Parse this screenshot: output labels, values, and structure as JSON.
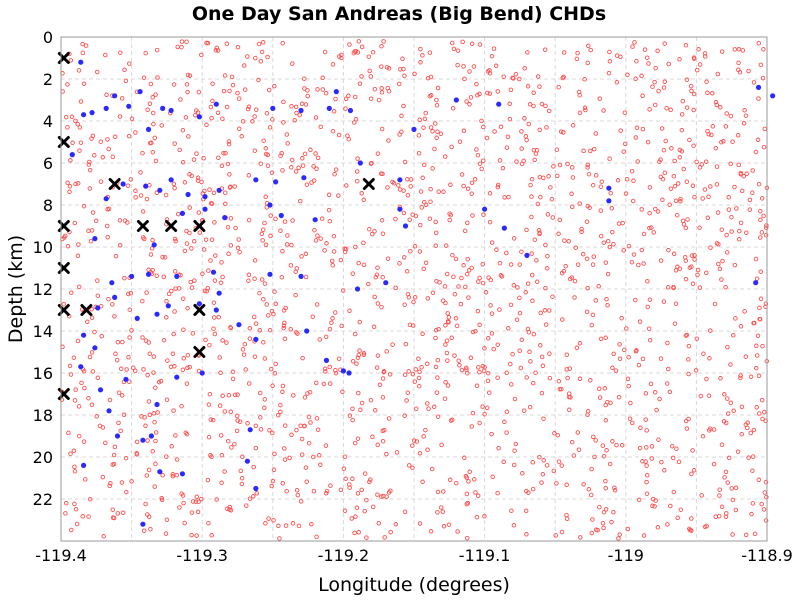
{
  "chart_data": {
    "type": "scatter",
    "title": "One Day San Andreas (Big Bend) CHDs",
    "xlabel": "Longitude (degrees)",
    "ylabel": "Depth (km)",
    "xlim": [
      -119.4,
      -118.9
    ],
    "ylim": [
      24,
      0
    ],
    "y_inverted": true,
    "grid": true,
    "x_ticks": [
      -119.4,
      -119.3,
      -119.2,
      -119.1,
      -119,
      -118.9
    ],
    "x_tick_labels": [
      "-119.4",
      "-119.3",
      "-119.2",
      "-119.1",
      "-119",
      "-118.9"
    ],
    "y_ticks": [
      0,
      2,
      4,
      6,
      8,
      10,
      12,
      14,
      16,
      18,
      20,
      22
    ],
    "y_tick_labels": [
      "0",
      "2",
      "4",
      "6",
      "8",
      "10",
      "12",
      "14",
      "16",
      "18",
      "20",
      "22"
    ],
    "colors": {
      "background_points": "#ff5050",
      "blue_points": "#2a2aff",
      "cross_markers": "#000000",
      "grid": "#d8d8d8",
      "frame": "#999999"
    },
    "series": [
      {
        "marker": "cross",
        "points": [
          [
            -119.398,
            1
          ],
          [
            -119.398,
            5
          ],
          [
            -119.398,
            9
          ],
          [
            -119.398,
            11
          ],
          [
            -119.398,
            13
          ],
          [
            -119.398,
            17
          ],
          [
            -119.362,
            7
          ],
          [
            -119.342,
            9
          ],
          [
            -119.322,
            9
          ],
          [
            -119.302,
            9
          ],
          [
            -119.302,
            13
          ],
          [
            -119.302,
            15
          ],
          [
            -119.382,
            13
          ],
          [
            -119.182,
            7
          ]
        ]
      },
      {
        "marker": "filled-circle",
        "points": [
          [
            -119.386,
            1.2
          ],
          [
            -119.384,
            3.7
          ],
          [
            -119.378,
            3.6
          ],
          [
            -119.368,
            3.4
          ],
          [
            -119.362,
            2.8
          ],
          [
            -119.352,
            3.3
          ],
          [
            -119.344,
            2.6
          ],
          [
            -119.338,
            4.4
          ],
          [
            -119.328,
            3.4
          ],
          [
            -119.322,
            3.5
          ],
          [
            -119.302,
            3.8
          ],
          [
            -119.29,
            3.2
          ],
          [
            -119.25,
            3.4
          ],
          [
            -119.23,
            3.5
          ],
          [
            -119.21,
            3.4
          ],
          [
            -119.205,
            2.6
          ],
          [
            -119.195,
            3.5
          ],
          [
            -119.15,
            4.4
          ],
          [
            -119.12,
            3.0
          ],
          [
            -119.09,
            3.2
          ],
          [
            -119.392,
            5.6
          ],
          [
            -119.188,
            6.0
          ],
          [
            -119.368,
            7.7
          ],
          [
            -119.356,
            7.0
          ],
          [
            -119.34,
            7.1
          ],
          [
            -119.33,
            7.3
          ],
          [
            -119.322,
            6.8
          ],
          [
            -119.31,
            7.5
          ],
          [
            -119.298,
            7.6
          ],
          [
            -119.288,
            7.3
          ],
          [
            -119.262,
            6.8
          ],
          [
            -119.248,
            6.9
          ],
          [
            -119.228,
            6.7
          ],
          [
            -119.16,
            6.8
          ],
          [
            -119.012,
            7.2
          ],
          [
            -119.012,
            7.8
          ],
          [
            -118.868,
            7.8
          ],
          [
            -119.376,
            9.6
          ],
          [
            -119.334,
            9.9
          ],
          [
            -119.314,
            8.4
          ],
          [
            -119.298,
            8.2
          ],
          [
            -119.284,
            8.6
          ],
          [
            -119.252,
            8.0
          ],
          [
            -119.244,
            8.5
          ],
          [
            -119.22,
            8.7
          ],
          [
            -119.16,
            8.2
          ],
          [
            -119.156,
            9.0
          ],
          [
            -119.1,
            8.2
          ],
          [
            -119.086,
            9.1
          ],
          [
            -119.07,
            10.4
          ],
          [
            -119.364,
            11.7
          ],
          [
            -119.35,
            11.4
          ],
          [
            -119.338,
            11.3
          ],
          [
            -119.318,
            11.4
          ],
          [
            -119.292,
            11.2
          ],
          [
            -119.288,
            12.2
          ],
          [
            -119.252,
            11.3
          ],
          [
            -119.23,
            11.4
          ],
          [
            -119.19,
            12.0
          ],
          [
            -119.17,
            11.7
          ],
          [
            -118.908,
            11.7
          ],
          [
            -119.374,
            12.9
          ],
          [
            -119.362,
            12.4
          ],
          [
            -119.346,
            13.4
          ],
          [
            -119.332,
            13.2
          ],
          [
            -119.324,
            12.8
          ],
          [
            -119.302,
            12.7
          ],
          [
            -119.29,
            13.0
          ],
          [
            -119.274,
            13.7
          ],
          [
            -119.262,
            14.4
          ],
          [
            -119.226,
            14.0
          ],
          [
            -119.212,
            15.4
          ],
          [
            -119.2,
            15.9
          ],
          [
            -119.196,
            16.0
          ],
          [
            -119.386,
            15.7
          ],
          [
            -119.372,
            16.8
          ],
          [
            -119.366,
            17.8
          ],
          [
            -119.354,
            16.3
          ],
          [
            -119.332,
            17.5
          ],
          [
            -119.318,
            16.2
          ],
          [
            -119.3,
            16.0
          ],
          [
            -119.266,
            18.7
          ],
          [
            -119.36,
            19.0
          ],
          [
            -119.342,
            19.2
          ],
          [
            -119.336,
            19.0
          ],
          [
            -119.384,
            20.4
          ],
          [
            -119.33,
            20.7
          ],
          [
            -119.314,
            20.8
          ],
          [
            -119.268,
            20.2
          ],
          [
            -119.262,
            21.5
          ],
          [
            -119.342,
            23.2
          ],
          [
            -119.376,
            14.8
          ],
          [
            -119.384,
            14.2
          ],
          [
            -118.896,
            2.8
          ],
          [
            -118.906,
            2.4
          ]
        ]
      }
    ]
  }
}
